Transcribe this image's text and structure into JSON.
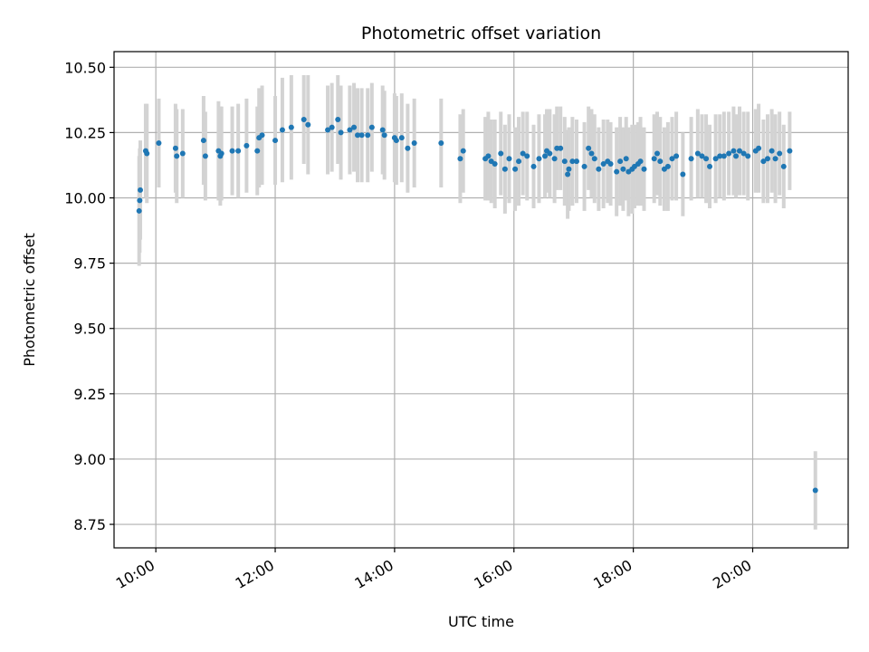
{
  "chart_data": {
    "type": "scatter",
    "title": "Photometric offset variation",
    "xlabel": "UTC time",
    "ylabel": "Photometric offset",
    "x_unit": "hours",
    "xlim": [
      9.3,
      21.6
    ],
    "ylim": [
      8.66,
      10.56
    ],
    "grid": true,
    "legend": "none",
    "colors": {
      "point": "#1f77b4",
      "errorbar": "#d3d3d3",
      "grid": "#b0b0b0"
    },
    "x_ticks": [
      {
        "value": 10,
        "label": "10:00"
      },
      {
        "value": 12,
        "label": "12:00"
      },
      {
        "value": 14,
        "label": "14:00"
      },
      {
        "value": 16,
        "label": "16:00"
      },
      {
        "value": 18,
        "label": "18:00"
      },
      {
        "value": 20,
        "label": "20:00"
      }
    ],
    "y_ticks": [
      {
        "value": 8.75,
        "label": "8.75"
      },
      {
        "value": 9.0,
        "label": "9.00"
      },
      {
        "value": 9.25,
        "label": "9.25"
      },
      {
        "value": 9.5,
        "label": "9.50"
      },
      {
        "value": 9.75,
        "label": "9.75"
      },
      {
        "value": 10.0,
        "label": "10.00"
      },
      {
        "value": 10.25,
        "label": "10.25"
      },
      {
        "value": 10.5,
        "label": "10.50"
      }
    ],
    "series": [
      {
        "name": "offset",
        "points": [
          [
            9.72,
            9.95,
            0.21
          ],
          [
            9.73,
            9.99,
            0.2
          ],
          [
            9.74,
            10.03,
            0.19
          ],
          [
            9.83,
            10.18,
            0.18
          ],
          [
            9.85,
            10.17,
            0.19
          ],
          [
            10.05,
            10.21,
            0.17
          ],
          [
            10.33,
            10.19,
            0.17
          ],
          [
            10.35,
            10.16,
            0.18
          ],
          [
            10.45,
            10.17,
            0.17
          ],
          [
            10.8,
            10.22,
            0.17
          ],
          [
            10.83,
            10.16,
            0.17
          ],
          [
            11.05,
            10.18,
            0.19
          ],
          [
            11.08,
            10.16,
            0.19
          ],
          [
            11.1,
            10.17,
            0.18
          ],
          [
            11.28,
            10.18,
            0.17
          ],
          [
            11.38,
            10.18,
            0.18
          ],
          [
            11.52,
            10.2,
            0.18
          ],
          [
            11.7,
            10.18,
            0.17
          ],
          [
            11.73,
            10.23,
            0.19
          ],
          [
            11.78,
            10.24,
            0.19
          ],
          [
            12.0,
            10.22,
            0.17
          ],
          [
            12.12,
            10.26,
            0.2
          ],
          [
            12.27,
            10.27,
            0.2
          ],
          [
            12.48,
            10.3,
            0.17
          ],
          [
            12.55,
            10.28,
            0.19
          ],
          [
            12.88,
            10.26,
            0.17
          ],
          [
            12.95,
            10.27,
            0.17
          ],
          [
            13.05,
            10.3,
            0.17
          ],
          [
            13.1,
            10.25,
            0.18
          ],
          [
            13.25,
            10.26,
            0.17
          ],
          [
            13.32,
            10.27,
            0.17
          ],
          [
            13.38,
            10.24,
            0.18
          ],
          [
            13.45,
            10.24,
            0.18
          ],
          [
            13.55,
            10.24,
            0.18
          ],
          [
            13.62,
            10.27,
            0.17
          ],
          [
            13.8,
            10.26,
            0.17
          ],
          [
            13.83,
            10.24,
            0.17
          ],
          [
            14.0,
            10.23,
            0.17
          ],
          [
            14.03,
            10.22,
            0.17
          ],
          [
            14.12,
            10.23,
            0.17
          ],
          [
            14.22,
            10.19,
            0.17
          ],
          [
            14.33,
            10.21,
            0.17
          ],
          [
            14.78,
            10.21,
            0.17
          ],
          [
            15.1,
            10.15,
            0.17
          ],
          [
            15.15,
            10.18,
            0.16
          ],
          [
            15.52,
            10.15,
            0.16
          ],
          [
            15.57,
            10.16,
            0.17
          ],
          [
            15.62,
            10.14,
            0.16
          ],
          [
            15.68,
            10.13,
            0.17
          ],
          [
            15.78,
            10.17,
            0.16
          ],
          [
            15.85,
            10.11,
            0.17
          ],
          [
            15.92,
            10.15,
            0.17
          ],
          [
            16.02,
            10.11,
            0.16
          ],
          [
            16.08,
            10.14,
            0.17
          ],
          [
            16.15,
            10.17,
            0.16
          ],
          [
            16.22,
            10.16,
            0.17
          ],
          [
            16.33,
            10.12,
            0.16
          ],
          [
            16.42,
            10.15,
            0.17
          ],
          [
            16.52,
            10.16,
            0.16
          ],
          [
            16.55,
            10.18,
            0.16
          ],
          [
            16.6,
            10.17,
            0.17
          ],
          [
            16.68,
            10.15,
            0.17
          ],
          [
            16.72,
            10.19,
            0.16
          ],
          [
            16.78,
            10.19,
            0.16
          ],
          [
            16.85,
            10.14,
            0.17
          ],
          [
            16.9,
            10.09,
            0.17
          ],
          [
            16.92,
            10.11,
            0.16
          ],
          [
            16.98,
            10.14,
            0.17
          ],
          [
            17.05,
            10.14,
            0.16
          ],
          [
            17.18,
            10.12,
            0.17
          ],
          [
            17.25,
            10.19,
            0.16
          ],
          [
            17.3,
            10.17,
            0.17
          ],
          [
            17.35,
            10.15,
            0.17
          ],
          [
            17.42,
            10.11,
            0.16
          ],
          [
            17.5,
            10.13,
            0.17
          ],
          [
            17.57,
            10.14,
            0.16
          ],
          [
            17.62,
            10.13,
            0.16
          ],
          [
            17.72,
            10.1,
            0.17
          ],
          [
            17.78,
            10.14,
            0.17
          ],
          [
            17.83,
            10.11,
            0.16
          ],
          [
            17.88,
            10.15,
            0.16
          ],
          [
            17.92,
            10.1,
            0.17
          ],
          [
            17.98,
            10.11,
            0.17
          ],
          [
            18.02,
            10.12,
            0.16
          ],
          [
            18.08,
            10.13,
            0.16
          ],
          [
            18.12,
            10.14,
            0.17
          ],
          [
            18.18,
            10.11,
            0.16
          ],
          [
            18.35,
            10.15,
            0.17
          ],
          [
            18.4,
            10.17,
            0.16
          ],
          [
            18.45,
            10.14,
            0.17
          ],
          [
            18.52,
            10.11,
            0.16
          ],
          [
            18.58,
            10.12,
            0.17
          ],
          [
            18.65,
            10.15,
            0.16
          ],
          [
            18.72,
            10.16,
            0.17
          ],
          [
            18.83,
            10.09,
            0.16
          ],
          [
            18.97,
            10.15,
            0.16
          ],
          [
            19.08,
            10.17,
            0.17
          ],
          [
            19.15,
            10.16,
            0.16
          ],
          [
            19.22,
            10.15,
            0.17
          ],
          [
            19.28,
            10.12,
            0.16
          ],
          [
            19.38,
            10.15,
            0.17
          ],
          [
            19.45,
            10.16,
            0.16
          ],
          [
            19.52,
            10.16,
            0.17
          ],
          [
            19.6,
            10.17,
            0.16
          ],
          [
            19.68,
            10.18,
            0.17
          ],
          [
            19.72,
            10.16,
            0.16
          ],
          [
            19.78,
            10.18,
            0.17
          ],
          [
            19.85,
            10.17,
            0.16
          ],
          [
            19.92,
            10.16,
            0.17
          ],
          [
            20.05,
            10.18,
            0.16
          ],
          [
            20.1,
            10.19,
            0.17
          ],
          [
            20.18,
            10.14,
            0.16
          ],
          [
            20.25,
            10.15,
            0.17
          ],
          [
            20.32,
            10.18,
            0.16
          ],
          [
            20.38,
            10.15,
            0.17
          ],
          [
            20.45,
            10.17,
            0.16
          ],
          [
            20.52,
            10.12,
            0.16
          ],
          [
            20.62,
            10.18,
            0.15
          ],
          [
            21.05,
            8.88,
            0.15
          ]
        ]
      }
    ]
  }
}
